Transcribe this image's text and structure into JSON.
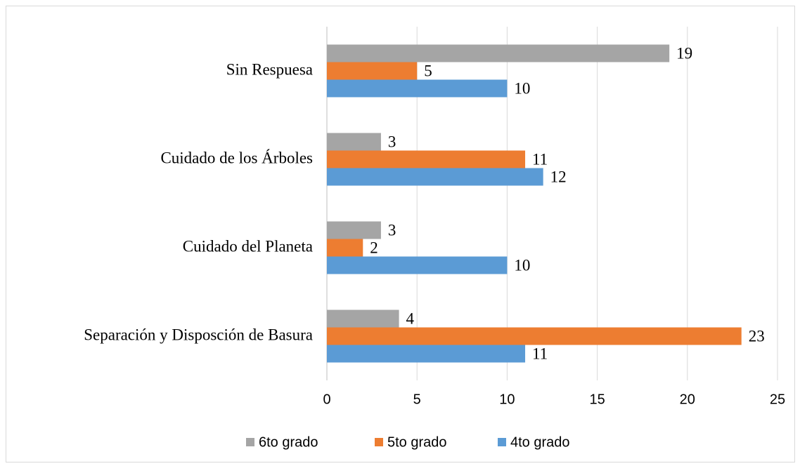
{
  "chart_data": {
    "type": "bar",
    "orientation": "horizontal",
    "categories": [
      "Sin Respuesa",
      "Cuidado de los Árboles",
      "Cuidado del Planeta",
      "Separación y Disposción de Basura"
    ],
    "series": [
      {
        "name": "6to grado",
        "color": "#a5a5a5",
        "values": [
          19,
          3,
          3,
          4
        ]
      },
      {
        "name": "5to grado",
        "color": "#ed7d31",
        "values": [
          5,
          11,
          2,
          23
        ]
      },
      {
        "name": "4to grado",
        "color": "#5b9bd5",
        "values": [
          10,
          12,
          10,
          11
        ]
      }
    ],
    "xlim": [
      0,
      25
    ],
    "xticks": [
      0,
      5,
      10,
      15,
      20,
      25
    ],
    "grid": true,
    "legend": "bottom"
  }
}
